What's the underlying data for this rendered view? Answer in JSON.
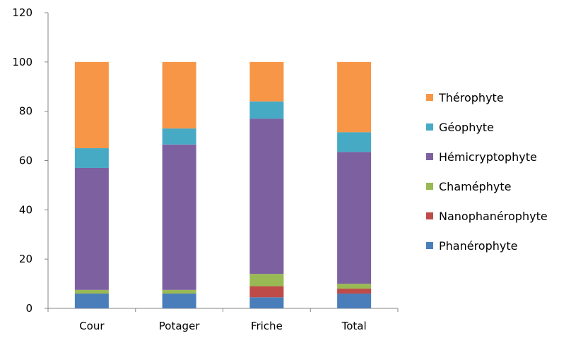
{
  "chart_data": {
    "type": "bar",
    "stacked": true,
    "title": "",
    "xlabel": "",
    "ylabel": "",
    "ylim": [
      0,
      120
    ],
    "yticks": [
      0,
      20,
      40,
      60,
      80,
      100,
      120
    ],
    "grid": false,
    "legend_position": "right",
    "categories": [
      "Cour",
      "Potager",
      "Friche",
      "Total"
    ],
    "series": [
      {
        "name": "Phanérophyte",
        "color": "#4a7ebb",
        "values": [
          6.0,
          6.0,
          4.5,
          6.0
        ]
      },
      {
        "name": "Nanophanérophyte",
        "color": "#be4b48",
        "values": [
          0.0,
          0.0,
          4.5,
          2.0
        ]
      },
      {
        "name": "Chaméphyte",
        "color": "#98b954",
        "values": [
          1.5,
          1.5,
          5.0,
          2.0
        ]
      },
      {
        "name": "Hémicryptophyte",
        "color": "#7d60a0",
        "values": [
          49.5,
          59.0,
          63.0,
          53.5
        ]
      },
      {
        "name": "Géophyte",
        "color": "#46aac5",
        "values": [
          8.0,
          6.5,
          7.0,
          8.0
        ]
      },
      {
        "name": "Thérophyte",
        "color": "#f79646",
        "values": [
          35.0,
          27.0,
          16.0,
          28.5
        ]
      }
    ]
  }
}
